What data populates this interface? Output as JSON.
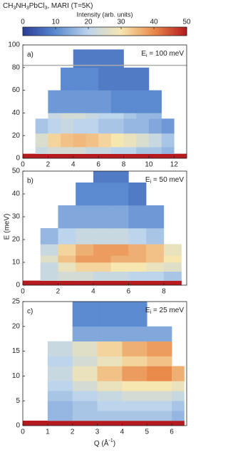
{
  "figure": {
    "title": [
      "CH",
      "3",
      "NH",
      "3",
      "PbCl",
      "3",
      ", MARI (T=5K)"
    ],
    "colorbar": {
      "label": "Intensity (arb. units)",
      "lim": [
        0,
        50
      ],
      "ticks": [
        0,
        10,
        20,
        30,
        40,
        50
      ],
      "colormap": [
        "#2b3d97",
        "#5b8ad0",
        "#bcd4ec",
        "#f6e6b0",
        "#e98a4a",
        "#b51a1f"
      ]
    },
    "ylabel": "E (meV)",
    "xlabel": [
      "Q (Å",
      "-1",
      ")"
    ]
  },
  "chart_data": [
    {
      "type": "heatmap",
      "label": "a)",
      "energy": [
        "E",
        "i",
        " = 100 meV"
      ],
      "xlim": [
        0,
        13
      ],
      "xticks": [
        0,
        2,
        4,
        6,
        8,
        10,
        12
      ],
      "ylim": [
        0,
        100
      ],
      "yticks": [
        0,
        20,
        40,
        60,
        80,
        100
      ],
      "hlines": [
        {
          "value": 82,
          "color": "#aaaaaa"
        }
      ],
      "x_edges": [
        0,
        1,
        2,
        3,
        4,
        5,
        6,
        7,
        8,
        9,
        10,
        11,
        12,
        13
      ],
      "y_edges": [
        0,
        4,
        10,
        22,
        35,
        40,
        60,
        80,
        96
      ],
      "z": [
        [
          50,
          50,
          50,
          50,
          50,
          50,
          50,
          50,
          50,
          50,
          50,
          50,
          50
        ],
        [
          null,
          22,
          24,
          24,
          24,
          22,
          22,
          20,
          20,
          18,
          18,
          16,
          null
        ],
        [
          null,
          25,
          32,
          34,
          35,
          34,
          32,
          30,
          28,
          25,
          22,
          18,
          null
        ],
        [
          null,
          18,
          20,
          22,
          20,
          20,
          18,
          18,
          16,
          16,
          14,
          12,
          null
        ],
        [
          null,
          null,
          22,
          24,
          24,
          22,
          20,
          20,
          18,
          16,
          16,
          null,
          null
        ],
        [
          null,
          null,
          12,
          12,
          12,
          12,
          12,
          10,
          10,
          10,
          10,
          null,
          null
        ],
        [
          null,
          null,
          null,
          10,
          10,
          10,
          8,
          8,
          8,
          8,
          null,
          null,
          null
        ],
        [
          null,
          null,
          null,
          null,
          8,
          8,
          8,
          8,
          null,
          null,
          null,
          null,
          null
        ]
      ]
    },
    {
      "type": "heatmap",
      "label": "b)",
      "energy": [
        "E",
        "i",
        " = 50 meV"
      ],
      "xlim": [
        0,
        9.3
      ],
      "xticks": [
        0,
        2,
        4,
        6,
        8
      ],
      "ylim": [
        0,
        50
      ],
      "yticks": [
        0,
        10,
        20,
        30,
        40,
        50
      ],
      "x_edges": [
        0,
        1,
        2,
        3,
        4,
        5,
        6,
        7,
        8,
        9
      ],
      "y_edges": [
        0,
        2,
        6,
        10,
        13,
        18,
        25,
        35,
        45,
        50
      ],
      "z": [
        [
          50,
          50,
          50,
          50,
          50,
          50,
          50,
          50,
          50
        ],
        [
          null,
          22,
          24,
          24,
          22,
          22,
          20,
          20,
          18
        ],
        [
          null,
          22,
          28,
          32,
          32,
          30,
          30,
          28,
          26
        ],
        [
          null,
          26,
          34,
          38,
          38,
          36,
          36,
          34,
          30
        ],
        [
          null,
          22,
          32,
          36,
          38,
          38,
          36,
          34,
          28
        ],
        [
          null,
          16,
          20,
          22,
          22,
          22,
          20,
          18,
          null
        ],
        [
          null,
          null,
          14,
          14,
          14,
          14,
          12,
          12,
          null
        ],
        [
          null,
          null,
          null,
          10,
          10,
          10,
          8,
          null,
          null
        ],
        [
          null,
          null,
          null,
          null,
          8,
          8,
          null,
          null,
          null
        ]
      ]
    },
    {
      "type": "heatmap",
      "label": "c)",
      "energy": [
        "E",
        "i",
        " = 25 meV"
      ],
      "xlim": [
        0,
        6.6
      ],
      "xticks": [
        0,
        1,
        2,
        3,
        4,
        5,
        6
      ],
      "ylim": [
        0,
        25
      ],
      "yticks": [
        0,
        5,
        10,
        15,
        20,
        25
      ],
      "x_edges": [
        0,
        1,
        2,
        3,
        4,
        5,
        6,
        6.5
      ],
      "y_edges": [
        0,
        1,
        3,
        5,
        7,
        9,
        12,
        14,
        17,
        20,
        25
      ],
      "z": [
        [
          50,
          50,
          50,
          50,
          50,
          50,
          50
        ],
        [
          null,
          16,
          18,
          18,
          18,
          18,
          16
        ],
        [
          null,
          16,
          18,
          20,
          20,
          20,
          18
        ],
        [
          null,
          18,
          20,
          22,
          24,
          24,
          22
        ],
        [
          null,
          20,
          24,
          28,
          30,
          30,
          28
        ],
        [
          null,
          22,
          28,
          34,
          38,
          40,
          36
        ],
        [
          null,
          20,
          24,
          28,
          32,
          34,
          null
        ],
        [
          null,
          22,
          26,
          32,
          36,
          38,
          null
        ],
        [
          null,
          null,
          14,
          14,
          14,
          14,
          null
        ],
        [
          null,
          null,
          10,
          10,
          10,
          null,
          null
        ]
      ]
    }
  ]
}
